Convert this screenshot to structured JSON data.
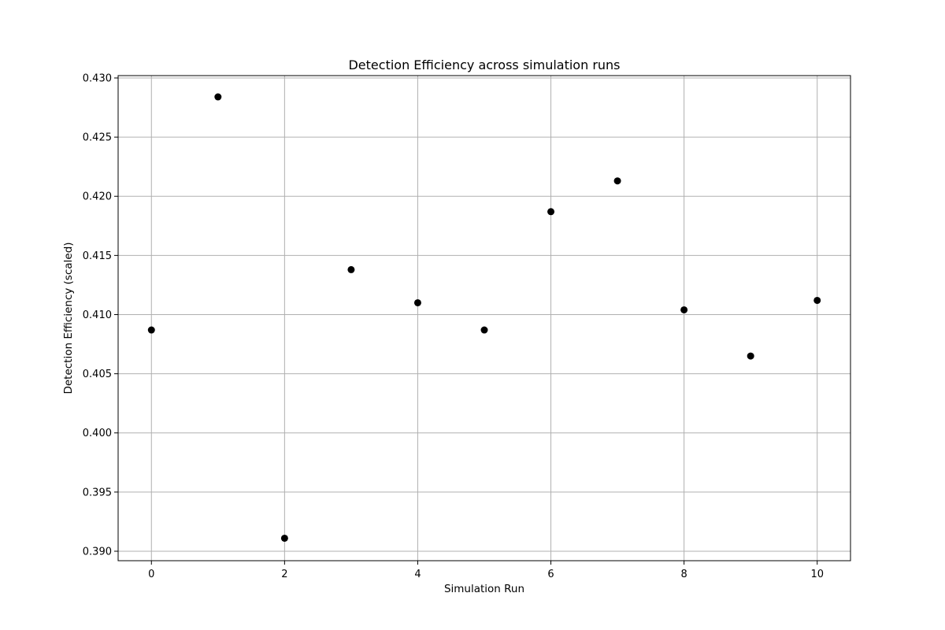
{
  "chart_data": {
    "type": "scatter",
    "title": "Detection Efficiency across simulation runs",
    "xlabel": "Simulation Run",
    "ylabel": "Detection Efficiency (scaled)",
    "x": [
      0,
      1,
      2,
      3,
      4,
      5,
      6,
      7,
      8,
      9,
      10
    ],
    "y": [
      0.4087,
      0.4284,
      0.3911,
      0.4138,
      0.411,
      0.4087,
      0.4187,
      0.4213,
      0.4104,
      0.4065,
      0.4112
    ],
    "xlim": [
      -0.5,
      10.5
    ],
    "ylim": [
      0.3892,
      0.4302
    ],
    "xticks": [
      0,
      2,
      4,
      6,
      8,
      10
    ],
    "xtick_labels": [
      "0",
      "2",
      "4",
      "6",
      "8",
      "10"
    ],
    "yticks": [
      0.39,
      0.395,
      0.4,
      0.405,
      0.41,
      0.415,
      0.42,
      0.425,
      0.43
    ],
    "ytick_labels": [
      "0.390",
      "0.395",
      "0.400",
      "0.405",
      "0.410",
      "0.415",
      "0.420",
      "0.425",
      "0.430"
    ],
    "grid": true,
    "marker_color": "#000000",
    "grid_color": "#b0b0b0"
  }
}
